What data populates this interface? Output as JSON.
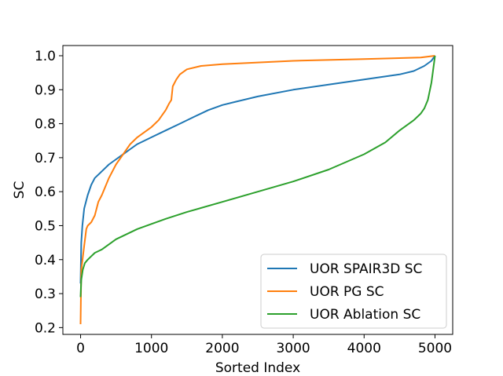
{
  "chart_data": {
    "type": "line",
    "title": "",
    "xlabel": "Sorted Index",
    "ylabel": "SC",
    "xlim": [
      -250,
      5250
    ],
    "ylim": [
      0.18,
      1.03
    ],
    "xticks": [
      0,
      1000,
      2000,
      3000,
      4000,
      5000
    ],
    "xtick_labels": [
      "0",
      "1000",
      "2000",
      "3000",
      "4000",
      "5000"
    ],
    "yticks": [
      0.2,
      0.3,
      0.4,
      0.5,
      0.6,
      0.7,
      0.8,
      0.9,
      1.0
    ],
    "ytick_labels": [
      "0.2",
      "0.3",
      "0.4",
      "0.5",
      "0.6",
      "0.7",
      "0.8",
      "0.9",
      "1.0"
    ],
    "grid": false,
    "legend_position": "bottom-right",
    "series": [
      {
        "name": "UOR SPAIR3D SC",
        "color": "#1f77b4",
        "x": [
          0,
          10,
          25,
          50,
          100,
          150,
          200,
          300,
          400,
          500,
          600,
          700,
          800,
          1000,
          1200,
          1400,
          1600,
          1800,
          2000,
          2200,
          2500,
          3000,
          3500,
          4000,
          4500,
          4700,
          4850,
          4950,
          5000
        ],
        "y": [
          0.33,
          0.45,
          0.5,
          0.55,
          0.59,
          0.62,
          0.64,
          0.66,
          0.68,
          0.695,
          0.71,
          0.725,
          0.74,
          0.76,
          0.78,
          0.8,
          0.82,
          0.84,
          0.855,
          0.865,
          0.88,
          0.9,
          0.915,
          0.93,
          0.945,
          0.955,
          0.97,
          0.985,
          1.0
        ]
      },
      {
        "name": "UOR PG SC",
        "color": "#ff7f0e",
        "x": [
          0,
          10,
          50,
          80,
          100,
          150,
          200,
          250,
          300,
          400,
          500,
          600,
          700,
          800,
          1000,
          1100,
          1200,
          1250,
          1280,
          1300,
          1350,
          1400,
          1500,
          1700,
          2000,
          2500,
          3000,
          4000,
          4800,
          5000
        ],
        "y": [
          0.21,
          0.37,
          0.44,
          0.49,
          0.5,
          0.51,
          0.53,
          0.57,
          0.59,
          0.64,
          0.68,
          0.71,
          0.74,
          0.76,
          0.79,
          0.81,
          0.84,
          0.86,
          0.87,
          0.91,
          0.93,
          0.945,
          0.96,
          0.97,
          0.975,
          0.98,
          0.985,
          0.99,
          0.995,
          1.0
        ]
      },
      {
        "name": "UOR Ablation SC",
        "color": "#2ca02c",
        "x": [
          0,
          10,
          30,
          60,
          100,
          200,
          300,
          500,
          800,
          1000,
          1200,
          1500,
          2000,
          2500,
          3000,
          3500,
          4000,
          4300,
          4500,
          4700,
          4800,
          4850,
          4900,
          4950,
          5000
        ],
        "y": [
          0.29,
          0.34,
          0.37,
          0.39,
          0.4,
          0.42,
          0.43,
          0.46,
          0.49,
          0.505,
          0.52,
          0.54,
          0.57,
          0.6,
          0.63,
          0.665,
          0.71,
          0.745,
          0.78,
          0.81,
          0.83,
          0.845,
          0.87,
          0.92,
          1.0
        ]
      }
    ]
  }
}
